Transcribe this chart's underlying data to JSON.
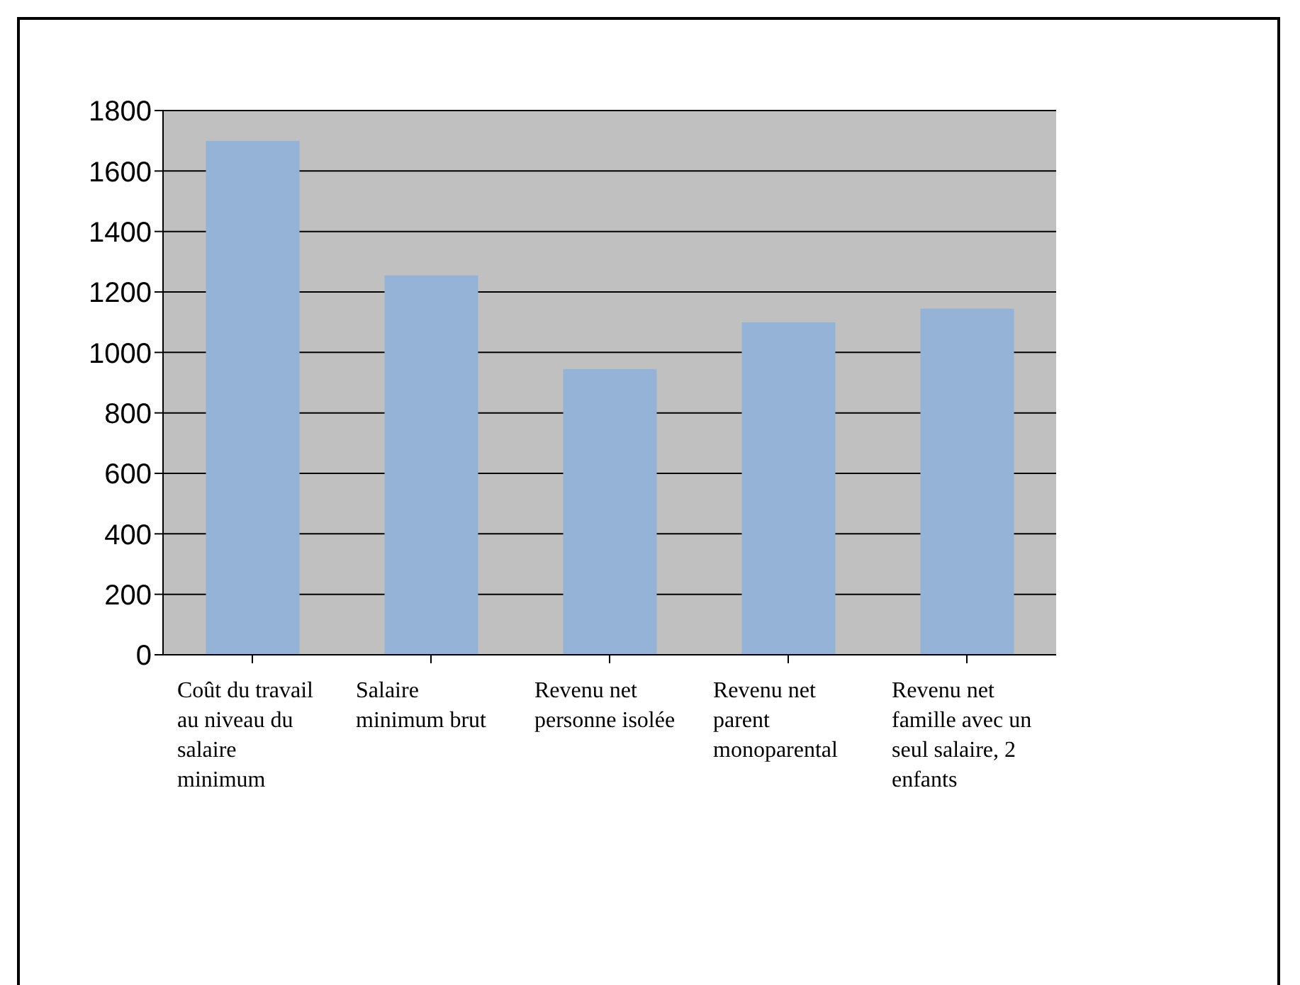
{
  "chart_data": {
    "type": "bar",
    "categories": [
      "Coût du travail au niveau du salaire minimum",
      "Salaire minimum brut",
      "Revenu net personne isolée",
      "Revenu net parent monoparental",
      "Revenu net famille avec un seul salaire, 2 enfants"
    ],
    "values": [
      1700,
      1255,
      945,
      1100,
      1145
    ],
    "color": "#95b3d7",
    "ylim": [
      0,
      1800
    ],
    "yticks": [
      0,
      200,
      400,
      600,
      800,
      1000,
      1200,
      1400,
      1600,
      1800
    ],
    "grid": "y"
  }
}
